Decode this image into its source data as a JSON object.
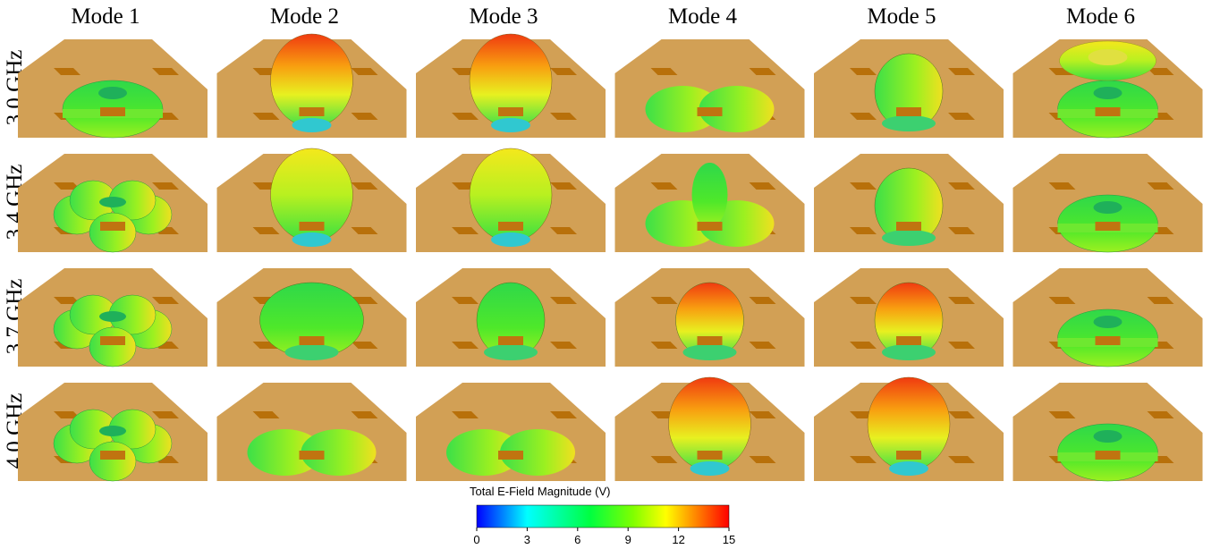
{
  "columns": [
    "Mode 1",
    "Mode 2",
    "Mode 3",
    "Mode 4",
    "Mode 5",
    "Mode 6"
  ],
  "rows": [
    "3.0 GHz",
    "3.4 GHz",
    "3.7 GHz",
    "4.0 GHz"
  ],
  "colorbar": {
    "title": "Total E-Field Magnitude (V)",
    "lim": [
      0,
      15
    ],
    "ticks": [
      0,
      3,
      6,
      9,
      12,
      15
    ]
  }
}
